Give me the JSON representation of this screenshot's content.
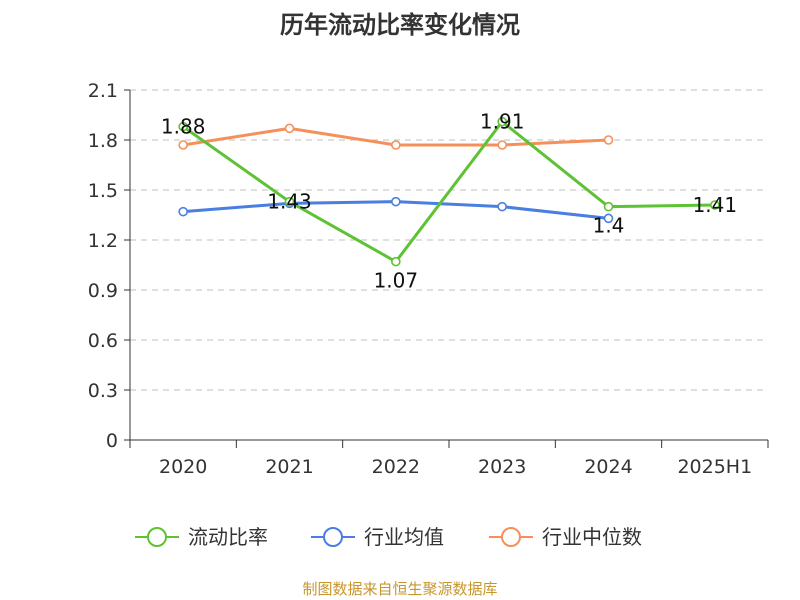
{
  "source_note": "制图数据来自恒生聚源数据库",
  "colors": {
    "axis": "#333333",
    "grid": "#cccccc",
    "source": "#c8962c"
  },
  "chart_data": {
    "type": "line",
    "title": "历年流动比率变化情况",
    "categories": [
      "2020",
      "2021",
      "2022",
      "2023",
      "2024",
      "2025H1"
    ],
    "y_ticks": [
      "0",
      "0.3",
      "0.6",
      "0.9",
      "1.2",
      "1.5",
      "1.8",
      "2.1"
    ],
    "ylim": [
      0,
      2.1
    ],
    "grid": "horizontal-dashed",
    "legend_position": "bottom",
    "series": [
      {
        "name": "流动比率",
        "color": "#5dc234",
        "values": [
          1.88,
          1.43,
          1.07,
          1.91,
          1.4,
          1.41
        ],
        "labels": [
          "1.88",
          "1.43",
          "1.07",
          "1.91",
          "1.4",
          "1.41"
        ],
        "show_labels": true
      },
      {
        "name": "行业均值",
        "color": "#4a7ee0",
        "values": [
          1.37,
          1.42,
          1.43,
          1.4,
          1.33,
          null
        ],
        "show_labels": false
      },
      {
        "name": "行业中位数",
        "color": "#f5905a",
        "values": [
          1.77,
          1.87,
          1.77,
          1.77,
          1.8,
          null
        ],
        "show_labels": false
      }
    ]
  }
}
